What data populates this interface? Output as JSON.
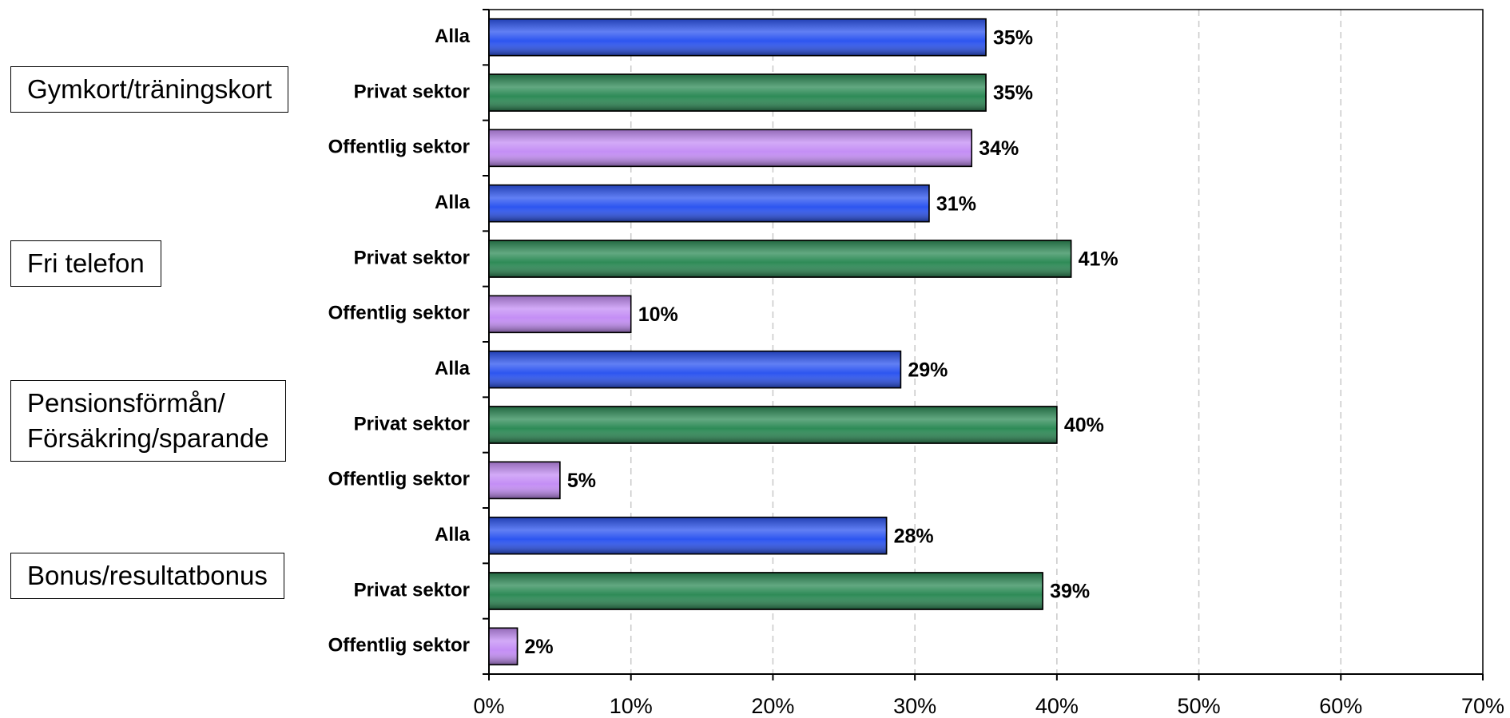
{
  "chart_data": {
    "type": "bar",
    "orientation": "horizontal",
    "categories": [
      "Gymkort/träningskort",
      "Fri telefon",
      "Pensionsförmån/\nFörsäkring/sparande",
      "Bonus/resultatbonus"
    ],
    "series": [
      {
        "name": "Alla",
        "color": "#2d55f0",
        "values": [
          35,
          31,
          29,
          28
        ],
        "value_labels": [
          "35%",
          "31%",
          "29%",
          "28%"
        ]
      },
      {
        "name": "Privat sektor",
        "color": "#2e8b57",
        "values": [
          35,
          41,
          40,
          39
        ],
        "value_labels": [
          "35%",
          "41%",
          "40%",
          "39%"
        ]
      },
      {
        "name": "Offentlig sektor",
        "color": "#c48ef5",
        "values": [
          34,
          10,
          5,
          2
        ],
        "value_labels": [
          "34%",
          "10%",
          "5%",
          "2%"
        ]
      }
    ],
    "xlim": [
      0,
      70
    ],
    "xticks": [
      {
        "value": 0,
        "label": "0%"
      },
      {
        "value": 10,
        "label": "10%"
      },
      {
        "value": 20,
        "label": "20%"
      },
      {
        "value": 30,
        "label": "30%"
      },
      {
        "value": 40,
        "label": "40%"
      },
      {
        "value": 50,
        "label": "50%"
      },
      {
        "value": 60,
        "label": "60%"
      },
      {
        "value": 70,
        "label": "70%"
      }
    ],
    "grid": true
  }
}
